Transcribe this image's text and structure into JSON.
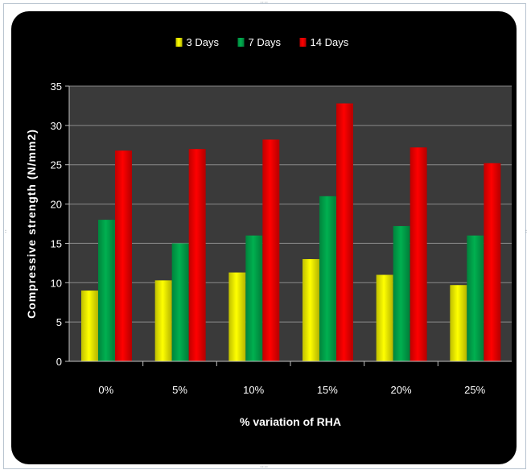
{
  "chart_data": {
    "type": "bar",
    "title": "",
    "xlabel": "% variation of RHA",
    "ylabel": "Compressive strength (N/mm2)",
    "categories": [
      "0%",
      "5%",
      "10%",
      "15%",
      "20%",
      "25%"
    ],
    "series": [
      {
        "name": "3 Days",
        "color": "#ffff00",
        "values": [
          9,
          10.3,
          11.3,
          13,
          11,
          9.7
        ]
      },
      {
        "name": "7 Days",
        "color": "#00b050",
        "values": [
          18,
          15,
          16,
          21,
          17.2,
          16
        ]
      },
      {
        "name": "14 Days",
        "color": "#ff0000",
        "values": [
          26.8,
          27,
          28.2,
          32.8,
          27.2,
          25.2
        ]
      }
    ],
    "ylim": [
      0,
      35
    ],
    "yticks": [
      0,
      5,
      10,
      15,
      20,
      25,
      30,
      35
    ],
    "grid": true,
    "legend_position": "top",
    "plot_background": "#3a3a3a",
    "chart_background": "#000000"
  }
}
